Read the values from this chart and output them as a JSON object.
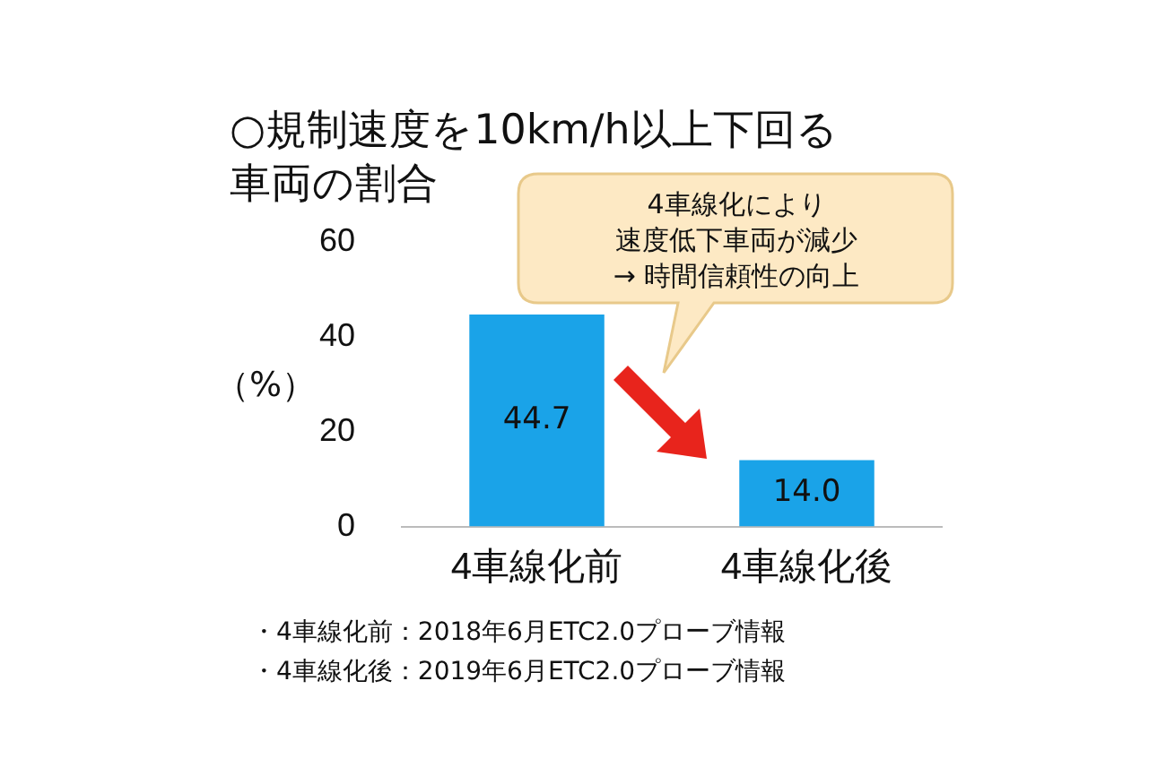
{
  "chart_data": {
    "type": "bar",
    "title": "○規制速度を10km/h以上下回る車両の割合",
    "ylabel": "（%）",
    "categories": [
      "4車線化前",
      "4車線化後"
    ],
    "values": [
      44.7,
      14.0
    ],
    "value_labels": [
      "44.7",
      "14.0"
    ],
    "color": "#1aa3e8",
    "ylim": [
      0,
      60
    ],
    "yticks": [
      0,
      20,
      40,
      60
    ],
    "grid": false,
    "legend": false,
    "annotations": [
      "4車線化により",
      "速度低下車両が減少",
      "→ 時間信頼性の向上",
      "・4車線化前：2018年6月ETC2.0プローブ情報",
      "・4車線化後：2019年6月ETC2.0プローブ情報"
    ]
  }
}
